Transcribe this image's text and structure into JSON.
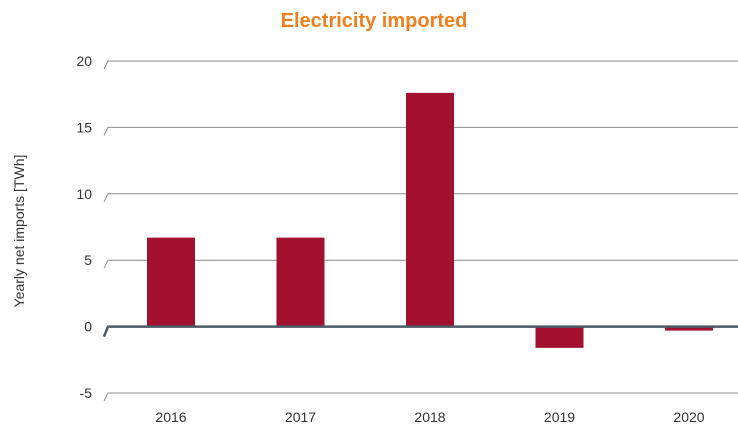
{
  "chart_data": {
    "type": "bar",
    "title": "Electricity imported",
    "xlabel": "",
    "ylabel": "Yearly net imports [TWh]",
    "categories": [
      "2016",
      "2017",
      "2018",
      "2019",
      "2020"
    ],
    "values": [
      6.7,
      6.7,
      17.6,
      -1.6,
      -0.3
    ],
    "ylim": [
      -5,
      20
    ],
    "yticks": [
      -5,
      0,
      5,
      10,
      15,
      20
    ],
    "ytick_labels": [
      "-5",
      "0",
      "5",
      "10",
      "15",
      "20"
    ],
    "grid": true,
    "legend": "none"
  },
  "colors": {
    "title": "#F07F1B",
    "bar": "#A3112E",
    "gridline": "#8C8C8C",
    "zero_line": "#4A5A66",
    "text": "#333333"
  }
}
